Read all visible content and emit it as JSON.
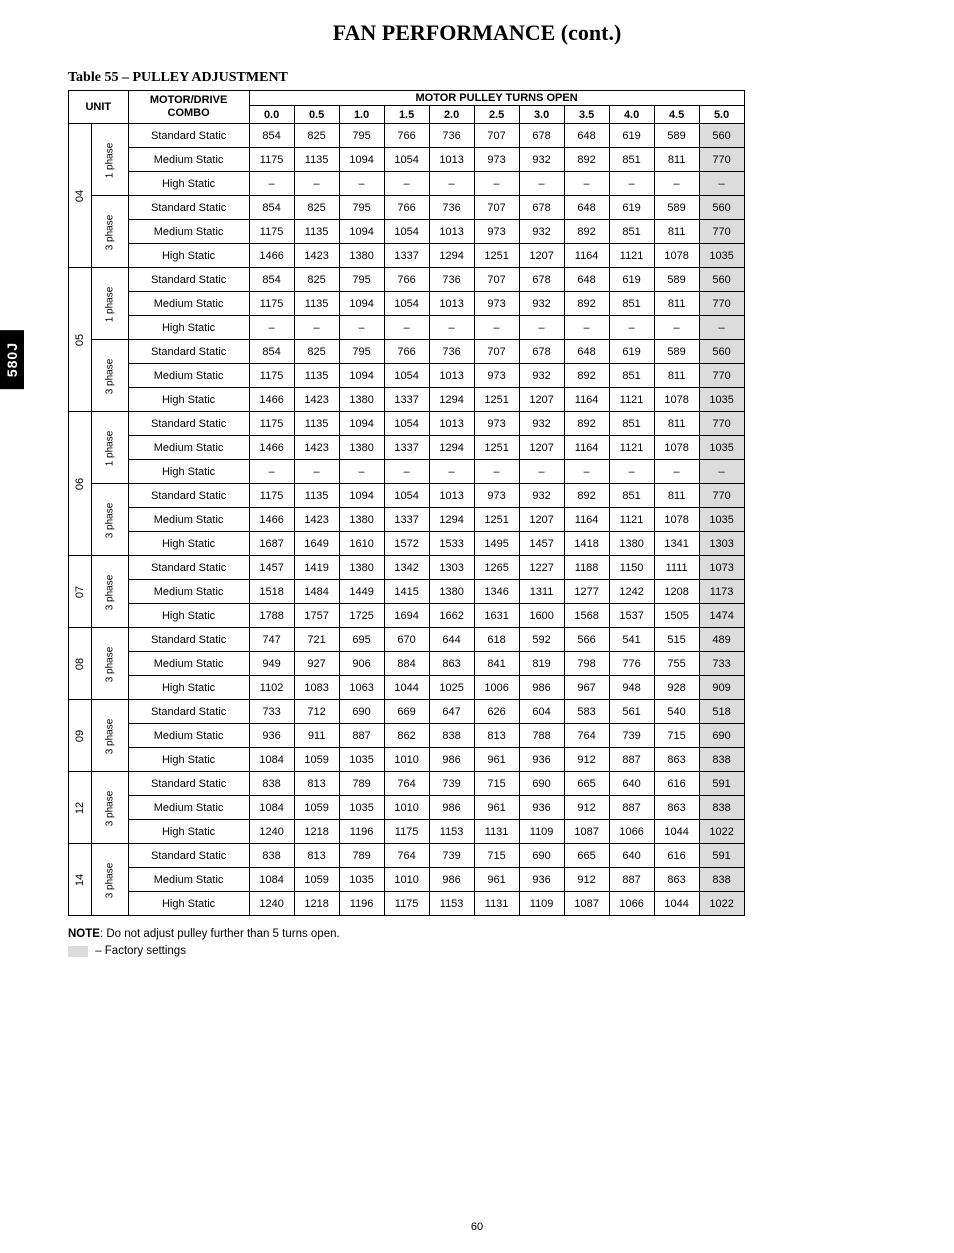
{
  "sideTab": "580J",
  "title": "FAN PERFORMANCE (cont.)",
  "tableCaption": "Table 55 – PULLEY ADJUSTMENT",
  "header": {
    "unit": "UNIT",
    "combo": "MOTOR/DRIVE\nCOMBO",
    "span": "MOTOR PULLEY TURNS OPEN",
    "cols": [
      "0.0",
      "0.5",
      "1.0",
      "1.5",
      "2.0",
      "2.5",
      "3.0",
      "3.5",
      "4.0",
      "4.5",
      "5.0"
    ]
  },
  "comboLabels": [
    "Standard Static",
    "Medium Static",
    "High Static"
  ],
  "phaseLabels": {
    "p1": "1 phase",
    "p3": "3 phase"
  },
  "shadedCol": 10,
  "units": [
    {
      "unit": "04",
      "groups": [
        {
          "phase": "p1",
          "rows": [
            [
              854,
              825,
              795,
              766,
              736,
              707,
              678,
              648,
              619,
              589,
              560
            ],
            [
              1175,
              1135,
              1094,
              1054,
              1013,
              973,
              932,
              892,
              851,
              811,
              770
            ],
            [
              "–",
              "–",
              "–",
              "–",
              "–",
              "–",
              "–",
              "–",
              "–",
              "–",
              "–"
            ]
          ]
        },
        {
          "phase": "p3",
          "rows": [
            [
              854,
              825,
              795,
              766,
              736,
              707,
              678,
              648,
              619,
              589,
              560
            ],
            [
              1175,
              1135,
              1094,
              1054,
              1013,
              973,
              932,
              892,
              851,
              811,
              770
            ],
            [
              1466,
              1423,
              1380,
              1337,
              1294,
              1251,
              1207,
              1164,
              1121,
              1078,
              1035
            ]
          ]
        }
      ]
    },
    {
      "unit": "05",
      "groups": [
        {
          "phase": "p1",
          "rows": [
            [
              854,
              825,
              795,
              766,
              736,
              707,
              678,
              648,
              619,
              589,
              560
            ],
            [
              1175,
              1135,
              1094,
              1054,
              1013,
              973,
              932,
              892,
              851,
              811,
              770
            ],
            [
              "–",
              "–",
              "–",
              "–",
              "–",
              "–",
              "–",
              "–",
              "–",
              "–",
              "–"
            ]
          ]
        },
        {
          "phase": "p3",
          "rows": [
            [
              854,
              825,
              795,
              766,
              736,
              707,
              678,
              648,
              619,
              589,
              560
            ],
            [
              1175,
              1135,
              1094,
              1054,
              1013,
              973,
              932,
              892,
              851,
              811,
              770
            ],
            [
              1466,
              1423,
              1380,
              1337,
              1294,
              1251,
              1207,
              1164,
              1121,
              1078,
              1035
            ]
          ]
        }
      ]
    },
    {
      "unit": "06",
      "groups": [
        {
          "phase": "p1",
          "rows": [
            [
              1175,
              1135,
              1094,
              1054,
              1013,
              973,
              932,
              892,
              851,
              811,
              770
            ],
            [
              1466,
              1423,
              1380,
              1337,
              1294,
              1251,
              1207,
              1164,
              1121,
              1078,
              1035
            ],
            [
              "–",
              "–",
              "–",
              "–",
              "–",
              "–",
              "–",
              "–",
              "–",
              "–",
              "–"
            ]
          ]
        },
        {
          "phase": "p3",
          "rows": [
            [
              1175,
              1135,
              1094,
              1054,
              1013,
              973,
              932,
              892,
              851,
              811,
              770
            ],
            [
              1466,
              1423,
              1380,
              1337,
              1294,
              1251,
              1207,
              1164,
              1121,
              1078,
              1035
            ],
            [
              1687,
              1649,
              1610,
              1572,
              1533,
              1495,
              1457,
              1418,
              1380,
              1341,
              1303
            ]
          ]
        }
      ]
    },
    {
      "unit": "07",
      "groups": [
        {
          "phase": "p3",
          "rows": [
            [
              1457,
              1419,
              1380,
              1342,
              1303,
              1265,
              1227,
              1188,
              1150,
              1111,
              1073
            ],
            [
              1518,
              1484,
              1449,
              1415,
              1380,
              1346,
              1311,
              1277,
              1242,
              1208,
              1173
            ],
            [
              1788,
              1757,
              1725,
              1694,
              1662,
              1631,
              1600,
              1568,
              1537,
              1505,
              1474
            ]
          ]
        }
      ]
    },
    {
      "unit": "08",
      "groups": [
        {
          "phase": "p3",
          "rows": [
            [
              747,
              721,
              695,
              670,
              644,
              618,
              592,
              566,
              541,
              515,
              489
            ],
            [
              949,
              927,
              906,
              884,
              863,
              841,
              819,
              798,
              776,
              755,
              733
            ],
            [
              1102,
              1083,
              1063,
              1044,
              1025,
              1006,
              986,
              967,
              948,
              928,
              909
            ]
          ]
        }
      ]
    },
    {
      "unit": "09",
      "groups": [
        {
          "phase": "p3",
          "rows": [
            [
              733,
              712,
              690,
              669,
              647,
              626,
              604,
              583,
              561,
              540,
              518
            ],
            [
              936,
              911,
              887,
              862,
              838,
              813,
              788,
              764,
              739,
              715,
              690
            ],
            [
              1084,
              1059,
              1035,
              1010,
              986,
              961,
              936,
              912,
              887,
              863,
              838
            ]
          ]
        }
      ]
    },
    {
      "unit": "12",
      "groups": [
        {
          "phase": "p3",
          "rows": [
            [
              838,
              813,
              789,
              764,
              739,
              715,
              690,
              665,
              640,
              616,
              591
            ],
            [
              1084,
              1059,
              1035,
              1010,
              986,
              961,
              936,
              912,
              887,
              863,
              838
            ],
            [
              1240,
              1218,
              1196,
              1175,
              1153,
              1131,
              1109,
              1087,
              1066,
              1044,
              1022
            ]
          ]
        }
      ]
    },
    {
      "unit": "14",
      "groups": [
        {
          "phase": "p3",
          "rows": [
            [
              838,
              813,
              789,
              764,
              739,
              715,
              690,
              665,
              640,
              616,
              591
            ],
            [
              1084,
              1059,
              1035,
              1010,
              986,
              961,
              936,
              912,
              887,
              863,
              838
            ],
            [
              1240,
              1218,
              1196,
              1175,
              1153,
              1131,
              1109,
              1087,
              1066,
              1044,
              1022
            ]
          ]
        }
      ]
    }
  ],
  "notes": {
    "noteLabel": "NOTE",
    "noteText": ": Do not adjust pulley further than 5 turns open.",
    "legend": " – Factory settings"
  },
  "pageNum": "60"
}
